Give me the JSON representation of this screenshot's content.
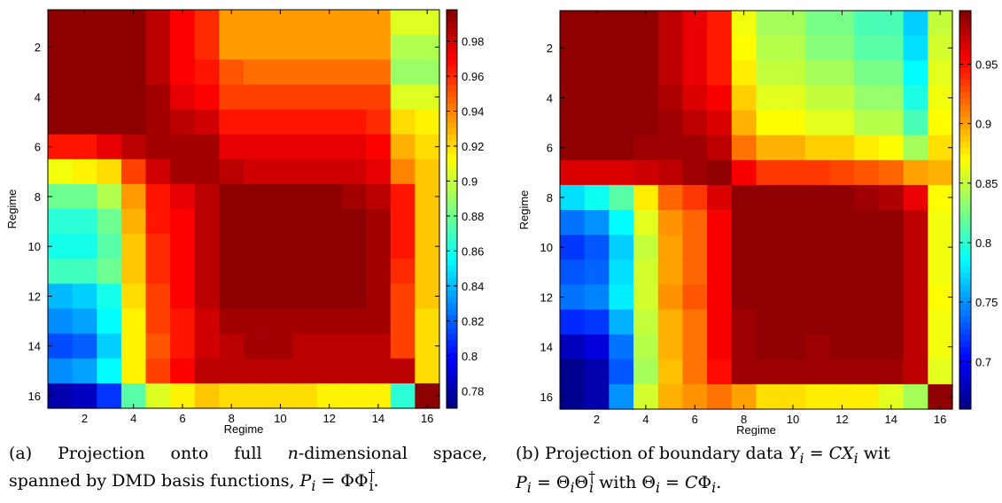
{
  "chart_data": [
    {
      "type": "heatmap",
      "id": "a",
      "xlabel": "Regime",
      "ylabel": "Regime",
      "x_ticks": [
        2,
        4,
        6,
        8,
        10,
        12,
        14,
        16
      ],
      "y_ticks": [
        2,
        4,
        6,
        8,
        10,
        12,
        14,
        16
      ],
      "colorbar_ticks": [
        "0.78",
        "0.8",
        "0.82",
        "0.84",
        "0.86",
        "0.88",
        "0.9",
        "0.92",
        "0.94",
        "0.96",
        "0.98"
      ],
      "colorbar_values": [
        0.78,
        0.8,
        0.82,
        0.84,
        0.86,
        0.88,
        0.9,
        0.92,
        0.94,
        0.96,
        0.98
      ],
      "clim": [
        0.77,
        0.998
      ],
      "colormap": "jet",
      "values": [
        [
          0.995,
          0.995,
          0.995,
          0.995,
          0.985,
          0.97,
          0.96,
          0.935,
          0.935,
          0.935,
          0.935,
          0.935,
          0.935,
          0.935,
          0.905,
          0.905
        ],
        [
          0.995,
          0.995,
          0.995,
          0.995,
          0.985,
          0.97,
          0.96,
          0.935,
          0.935,
          0.935,
          0.935,
          0.935,
          0.935,
          0.935,
          0.895,
          0.895
        ],
        [
          0.995,
          0.995,
          0.995,
          0.995,
          0.985,
          0.97,
          0.965,
          0.95,
          0.945,
          0.945,
          0.945,
          0.945,
          0.945,
          0.945,
          0.89,
          0.89
        ],
        [
          0.995,
          0.995,
          0.995,
          0.995,
          0.99,
          0.975,
          0.97,
          0.955,
          0.955,
          0.955,
          0.955,
          0.955,
          0.955,
          0.955,
          0.905,
          0.905
        ],
        [
          0.995,
          0.995,
          0.995,
          0.995,
          0.99,
          0.985,
          0.98,
          0.965,
          0.965,
          0.965,
          0.965,
          0.965,
          0.965,
          0.96,
          0.92,
          0.915
        ],
        [
          0.965,
          0.965,
          0.975,
          0.985,
          0.99,
          0.99,
          0.99,
          0.975,
          0.975,
          0.975,
          0.975,
          0.975,
          0.975,
          0.97,
          0.93,
          0.92
        ],
        [
          0.91,
          0.915,
          0.92,
          0.955,
          0.98,
          0.99,
          0.99,
          0.985,
          0.98,
          0.98,
          0.98,
          0.98,
          0.98,
          0.975,
          0.94,
          0.925
        ],
        [
          0.88,
          0.88,
          0.895,
          0.935,
          0.965,
          0.975,
          0.985,
          0.995,
          0.995,
          0.995,
          0.995,
          0.995,
          0.99,
          0.985,
          0.965,
          0.925
        ],
        [
          0.865,
          0.865,
          0.88,
          0.93,
          0.965,
          0.97,
          0.985,
          0.995,
          0.995,
          0.995,
          0.995,
          0.995,
          0.995,
          0.99,
          0.965,
          0.925
        ],
        [
          0.86,
          0.86,
          0.875,
          0.925,
          0.96,
          0.97,
          0.985,
          0.995,
          0.995,
          0.995,
          0.995,
          0.995,
          0.995,
          0.99,
          0.965,
          0.925
        ],
        [
          0.87,
          0.87,
          0.88,
          0.925,
          0.96,
          0.97,
          0.985,
          0.995,
          0.995,
          0.995,
          0.995,
          0.995,
          0.995,
          0.99,
          0.96,
          0.925
        ],
        [
          0.84,
          0.845,
          0.86,
          0.92,
          0.955,
          0.97,
          0.985,
          0.995,
          0.995,
          0.995,
          0.995,
          0.995,
          0.995,
          0.99,
          0.955,
          0.925
        ],
        [
          0.83,
          0.835,
          0.855,
          0.915,
          0.955,
          0.965,
          0.98,
          0.99,
          0.99,
          0.99,
          0.99,
          0.99,
          0.99,
          0.99,
          0.955,
          0.92
        ],
        [
          0.815,
          0.82,
          0.845,
          0.915,
          0.95,
          0.965,
          0.98,
          0.985,
          0.99,
          0.99,
          0.985,
          0.985,
          0.985,
          0.985,
          0.955,
          0.92
        ],
        [
          0.83,
          0.835,
          0.855,
          0.915,
          0.955,
          0.97,
          0.985,
          0.985,
          0.985,
          0.985,
          0.985,
          0.985,
          0.985,
          0.985,
          0.985,
          0.92
        ],
        [
          0.78,
          0.785,
          0.81,
          0.875,
          0.905,
          0.915,
          0.925,
          0.92,
          0.92,
          0.92,
          0.92,
          0.915,
          0.915,
          0.915,
          0.865,
          0.995
        ]
      ]
    },
    {
      "type": "heatmap",
      "id": "b",
      "xlabel": "Regime",
      "ylabel": "Regime",
      "x_ticks": [
        2,
        4,
        6,
        8,
        10,
        12,
        14,
        16
      ],
      "y_ticks": [
        2,
        4,
        6,
        8,
        10,
        12,
        14,
        16
      ],
      "colorbar_ticks": [
        "0.7",
        "0.75",
        "0.8",
        "0.85",
        "0.9",
        "0.95"
      ],
      "colorbar_values": [
        0.7,
        0.75,
        0.8,
        0.85,
        0.9,
        0.95
      ],
      "clim": [
        0.66,
        0.995
      ],
      "colormap": "jet",
      "values": [
        [
          0.99,
          0.99,
          0.99,
          0.99,
          0.975,
          0.96,
          0.945,
          0.865,
          0.84,
          0.84,
          0.825,
          0.825,
          0.81,
          0.81,
          0.77,
          0.85
        ],
        [
          0.99,
          0.99,
          0.99,
          0.99,
          0.975,
          0.96,
          0.945,
          0.87,
          0.845,
          0.845,
          0.83,
          0.83,
          0.815,
          0.815,
          0.775,
          0.855
        ],
        [
          0.99,
          0.99,
          0.99,
          0.99,
          0.975,
          0.96,
          0.945,
          0.875,
          0.85,
          0.85,
          0.84,
          0.84,
          0.825,
          0.825,
          0.785,
          0.86
        ],
        [
          0.99,
          0.99,
          0.99,
          0.99,
          0.98,
          0.965,
          0.955,
          0.885,
          0.86,
          0.86,
          0.85,
          0.85,
          0.835,
          0.835,
          0.795,
          0.865
        ],
        [
          0.99,
          0.99,
          0.99,
          0.99,
          0.985,
          0.975,
          0.965,
          0.895,
          0.87,
          0.87,
          0.86,
          0.86,
          0.845,
          0.845,
          0.81,
          0.87
        ],
        [
          0.99,
          0.99,
          0.99,
          0.985,
          0.985,
          0.985,
          0.975,
          0.915,
          0.895,
          0.895,
          0.885,
          0.885,
          0.875,
          0.87,
          0.84,
          0.88
        ],
        [
          0.965,
          0.965,
          0.965,
          0.97,
          0.975,
          0.985,
          0.99,
          0.955,
          0.935,
          0.935,
          0.935,
          0.93,
          0.925,
          0.92,
          0.9,
          0.895
        ],
        [
          0.775,
          0.79,
          0.815,
          0.875,
          0.92,
          0.935,
          0.965,
          0.99,
          0.99,
          0.99,
          0.99,
          0.99,
          0.985,
          0.98,
          0.96,
          0.87
        ],
        [
          0.74,
          0.75,
          0.785,
          0.86,
          0.905,
          0.92,
          0.955,
          0.99,
          0.99,
          0.99,
          0.99,
          0.99,
          0.99,
          0.99,
          0.975,
          0.865
        ],
        [
          0.72,
          0.73,
          0.77,
          0.85,
          0.9,
          0.92,
          0.955,
          0.99,
          0.99,
          0.99,
          0.99,
          0.99,
          0.99,
          0.99,
          0.975,
          0.865
        ],
        [
          0.73,
          0.735,
          0.775,
          0.855,
          0.9,
          0.92,
          0.955,
          0.99,
          0.99,
          0.99,
          0.99,
          0.99,
          0.99,
          0.99,
          0.975,
          0.865
        ],
        [
          0.74,
          0.745,
          0.78,
          0.855,
          0.905,
          0.925,
          0.955,
          0.99,
          0.99,
          0.99,
          0.99,
          0.99,
          0.99,
          0.99,
          0.975,
          0.87
        ],
        [
          0.715,
          0.72,
          0.76,
          0.85,
          0.895,
          0.915,
          0.955,
          0.985,
          0.99,
          0.99,
          0.99,
          0.99,
          0.99,
          0.99,
          0.975,
          0.865
        ],
        [
          0.68,
          0.69,
          0.74,
          0.845,
          0.895,
          0.915,
          0.955,
          0.985,
          0.99,
          0.99,
          0.985,
          0.99,
          0.99,
          0.99,
          0.975,
          0.865
        ],
        [
          0.665,
          0.675,
          0.73,
          0.84,
          0.89,
          0.915,
          0.95,
          0.985,
          0.985,
          0.985,
          0.985,
          0.985,
          0.985,
          0.985,
          0.975,
          0.86
        ],
        [
          0.665,
          0.675,
          0.75,
          0.855,
          0.895,
          0.905,
          0.915,
          0.9,
          0.88,
          0.88,
          0.875,
          0.875,
          0.875,
          0.86,
          0.84,
          0.99
        ]
      ]
    }
  ],
  "captions": {
    "a_line1": "(a) Projection onto full n-dimensional space,",
    "a_line2": "spanned by DMD basis functions, P_i = ΦΦ_i^†.",
    "b_line1": "(b) Projection of boundary data Y_i = CX_i wit",
    "b_line2": "P_i = Θ_iΘ_i^† with Θ_i = CΦ_i."
  }
}
